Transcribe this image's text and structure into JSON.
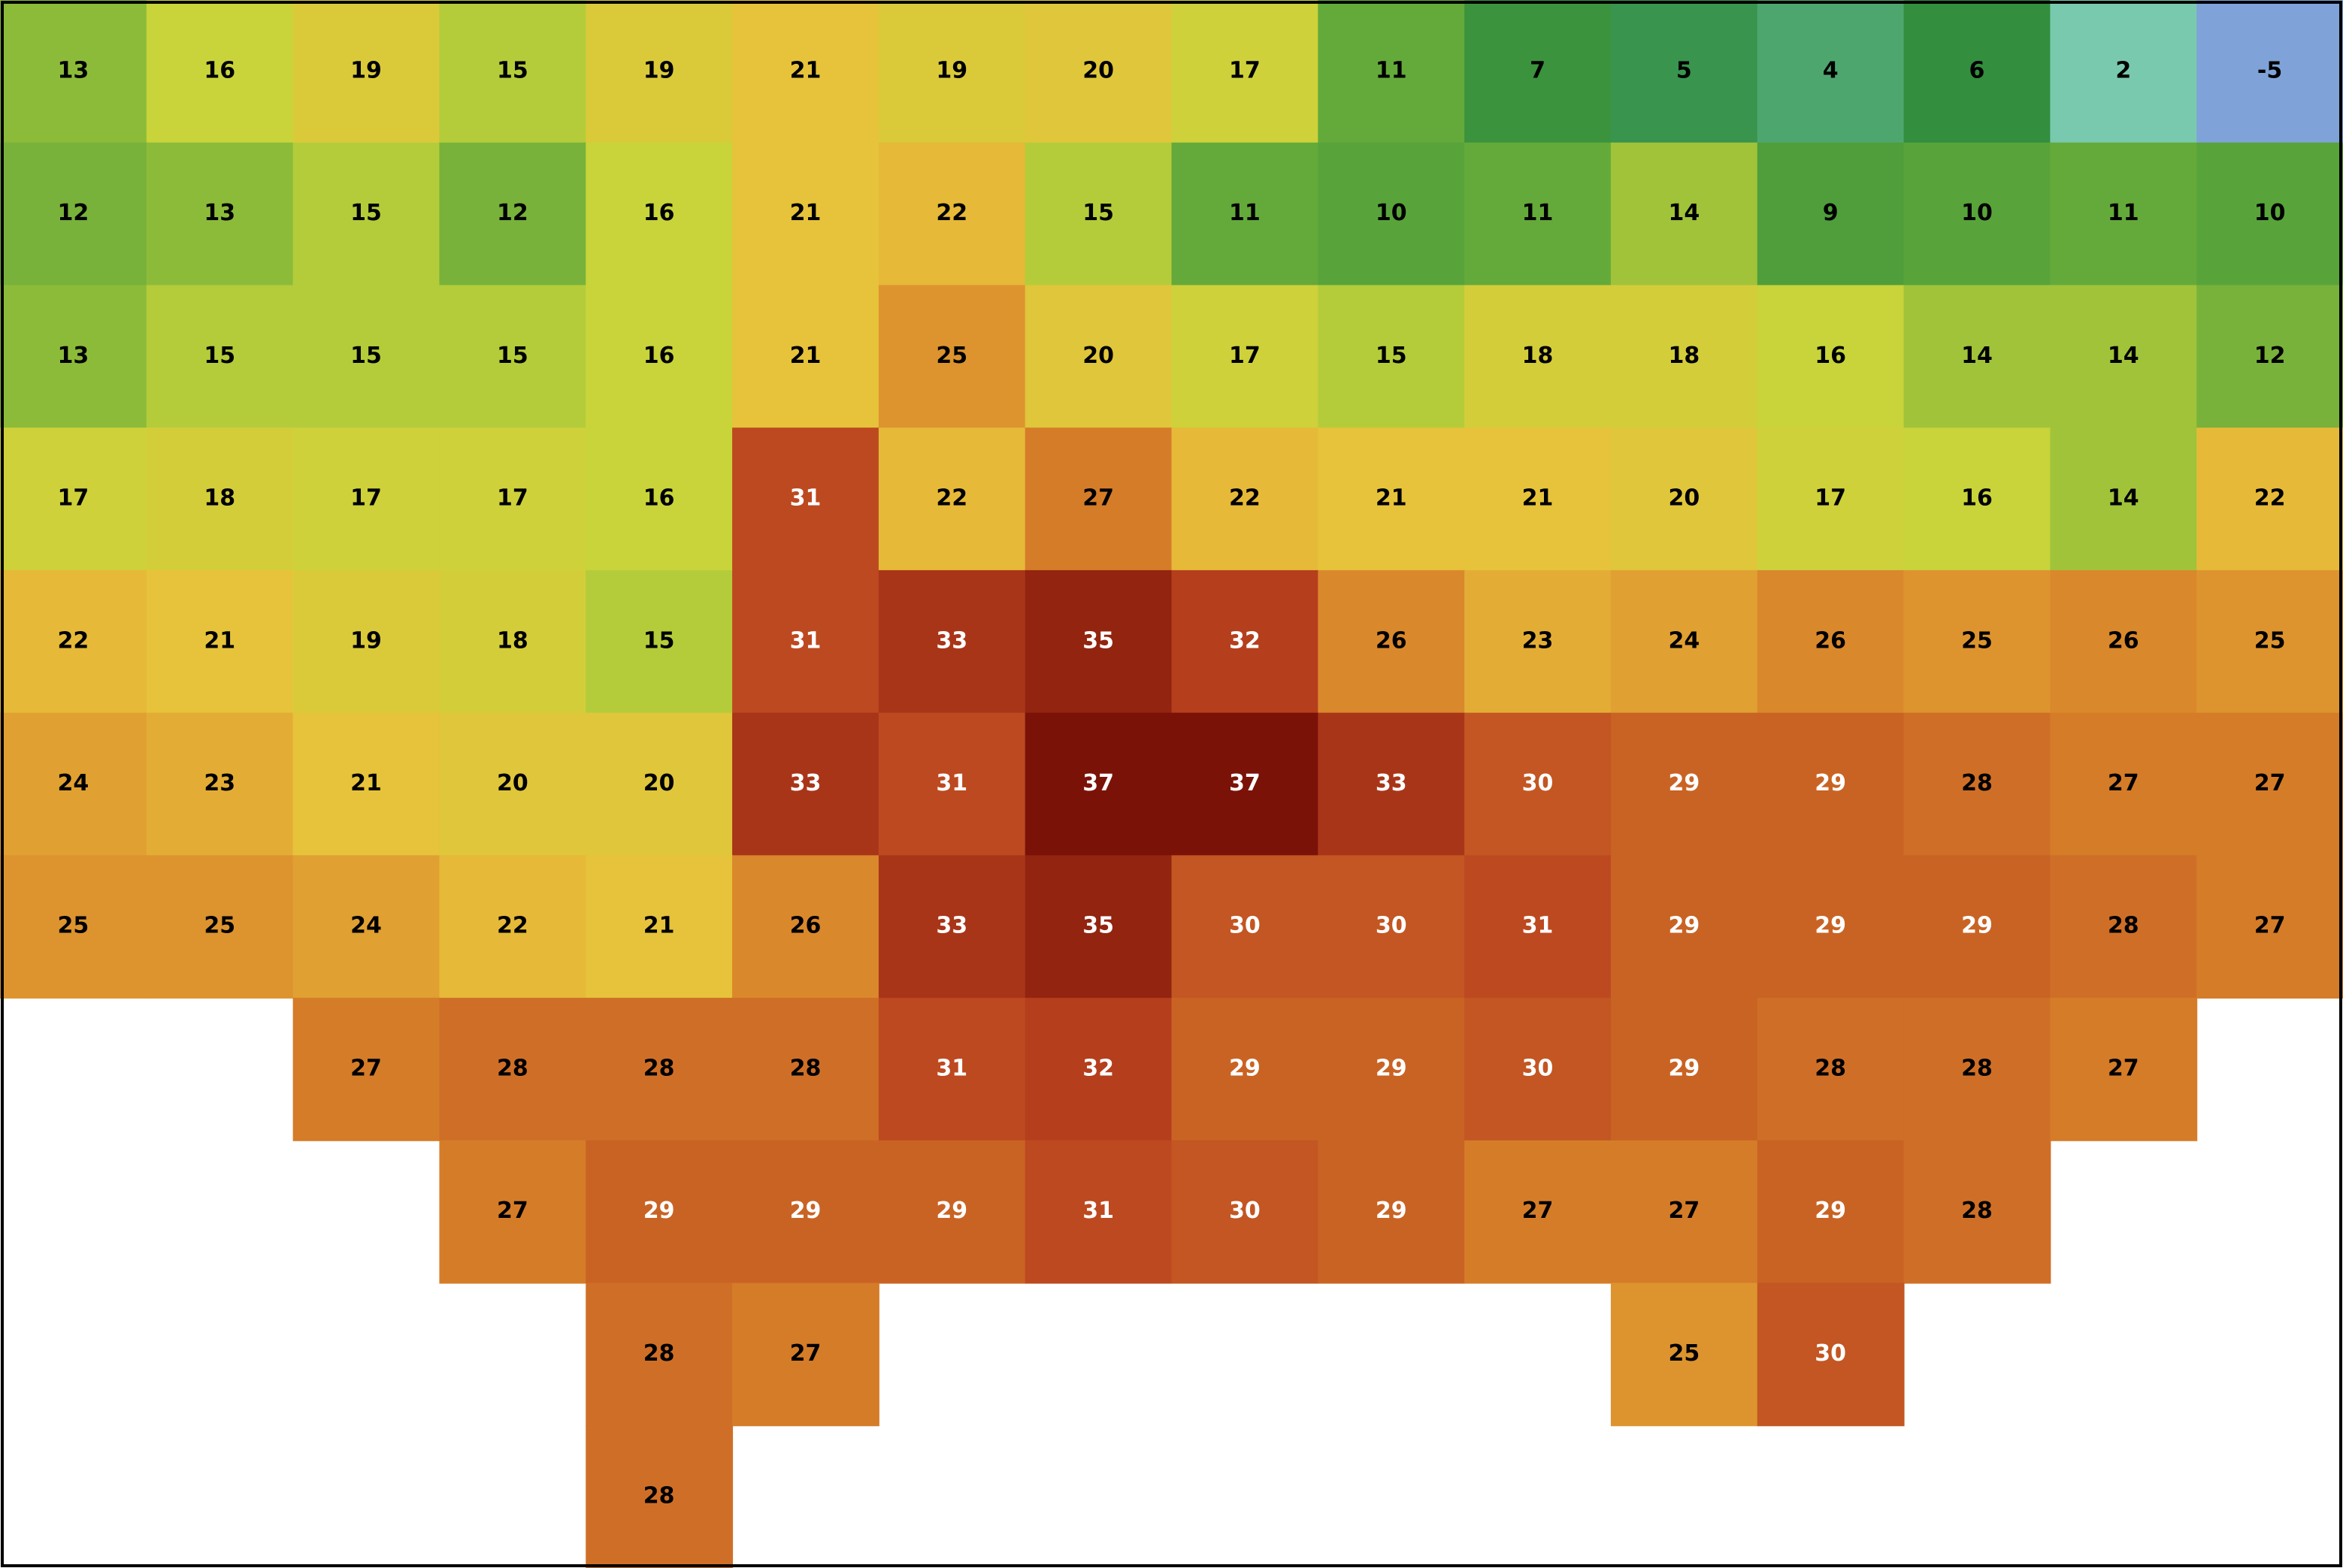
{
  "map": {
    "rows": [
      [
        13,
        16,
        19,
        15,
        19,
        21,
        19,
        20,
        17,
        11,
        7,
        5,
        4,
        6,
        2,
        -5
      ],
      [
        12,
        13,
        15,
        12,
        16,
        21,
        22,
        15,
        11,
        10,
        11,
        14,
        9,
        10,
        11,
        10
      ],
      [
        13,
        15,
        15,
        15,
        16,
        21,
        25,
        20,
        17,
        15,
        18,
        18,
        16,
        14,
        14,
        12
      ],
      [
        17,
        18,
        17,
        17,
        16,
        31,
        22,
        27,
        22,
        21,
        21,
        20,
        17,
        16,
        14,
        22
      ],
      [
        22,
        21,
        19,
        18,
        15,
        31,
        33,
        35,
        32,
        26,
        23,
        24,
        26,
        25,
        26,
        25
      ],
      [
        24,
        23,
        21,
        20,
        20,
        33,
        31,
        37,
        37,
        33,
        30,
        29,
        29,
        28,
        27,
        27
      ],
      [
        25,
        25,
        24,
        22,
        21,
        26,
        33,
        35,
        30,
        30,
        31,
        29,
        29,
        29,
        28,
        27
      ],
      [
        null,
        null,
        27,
        28,
        28,
        28,
        31,
        32,
        29,
        29,
        30,
        29,
        28,
        28,
        27,
        null
      ],
      [
        null,
        null,
        null,
        27,
        29,
        29,
        29,
        31,
        30,
        29,
        27,
        27,
        29,
        28,
        null,
        null
      ],
      [
        null,
        null,
        null,
        null,
        28,
        27,
        null,
        null,
        null,
        null,
        null,
        25,
        30,
        null,
        null,
        null
      ],
      [
        null,
        null,
        null,
        null,
        28,
        null,
        null,
        null,
        null,
        null,
        null,
        null,
        null,
        null,
        null,
        null
      ]
    ]
  }
}
